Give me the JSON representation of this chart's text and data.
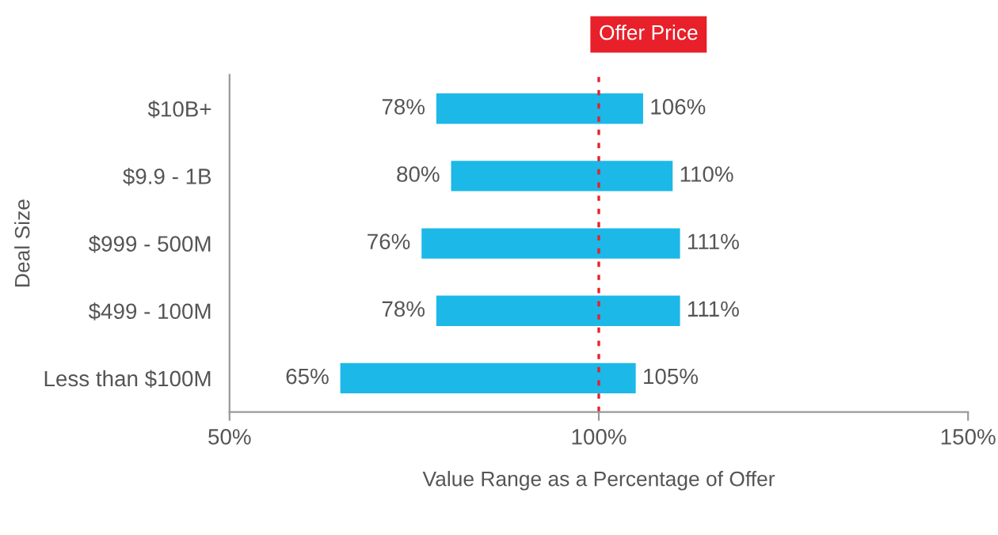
{
  "chart_data": {
    "type": "bar",
    "orientation": "horizontal",
    "xlabel": "Value Range as a Percentage of Offer",
    "ylabel": "Deal Size",
    "categories": [
      "$10B+",
      "$9.9 - 1B",
      "$999 - 500M",
      "$499 - 100M",
      "Less than $100M"
    ],
    "base": [
      78,
      80,
      76,
      78,
      65
    ],
    "values": [
      28,
      30,
      35,
      33,
      40
    ],
    "color": "#1cb8e8",
    "xlim": [
      50,
      150
    ],
    "xticks": [
      {
        "value": 50,
        "label": "50%"
      },
      {
        "value": 100,
        "label": "100%"
      },
      {
        "value": 150,
        "label": "150%"
      }
    ],
    "grid": false,
    "ref_lines": [
      {
        "axis": "x",
        "value": 100,
        "label": "Offer Price",
        "color": "#e8202a",
        "line_style": "dotted"
      }
    ],
    "annotations": [
      {
        "text": "78%",
        "x": 78,
        "y": "$10B+"
      },
      {
        "text": "106%",
        "x": 106,
        "y": "$10B+"
      },
      {
        "text": "80%",
        "x": 80,
        "y": "$9.9 - 1B"
      },
      {
        "text": "110%",
        "x": 110,
        "y": "$9.9 - 1B"
      },
      {
        "text": "76%",
        "x": 76,
        "y": "$999 - 500M"
      },
      {
        "text": "111%",
        "x": 111,
        "y": "$999 - 500M"
      },
      {
        "text": "78%",
        "x": 78,
        "y": "$499 - 100M"
      },
      {
        "text": "111%",
        "x": 111,
        "y": "$499 - 100M"
      },
      {
        "text": "65%",
        "x": 65,
        "y": "Less than $100M"
      },
      {
        "text": "105%",
        "x": 105,
        "y": "Less than $100M"
      }
    ]
  }
}
